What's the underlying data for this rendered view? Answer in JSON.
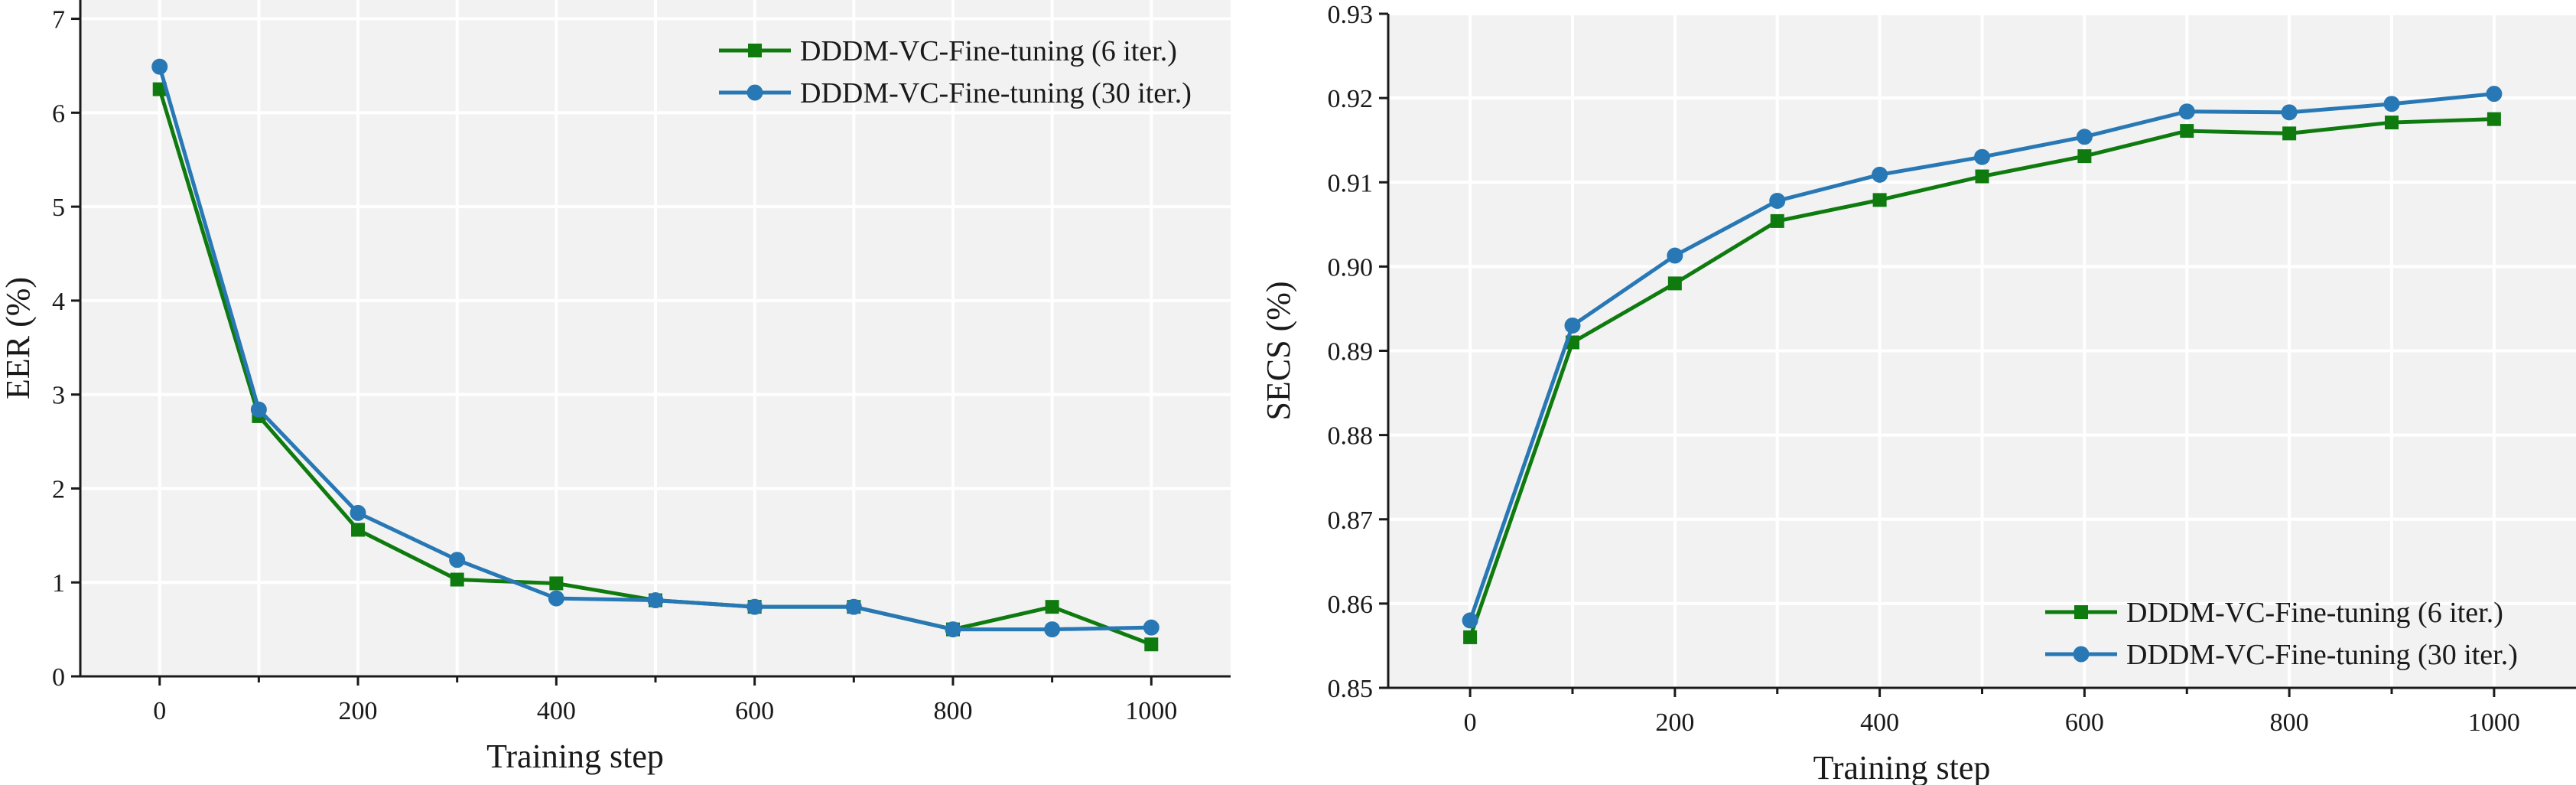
{
  "colors": {
    "series_6": "#0f7b0f",
    "series_30": "#2878b5",
    "panel_bg": "#f2f2f2",
    "grid": "#ffffff",
    "axis": "#1a1a1a"
  },
  "chart_data": [
    {
      "type": "line",
      "id": "eer",
      "title": "",
      "xlabel": "Training step",
      "ylabel": "EER (%)",
      "x": [
        0,
        100,
        200,
        300,
        400,
        500,
        600,
        700,
        800,
        900,
        1000
      ],
      "xlim": [
        -80,
        1080
      ],
      "ylim": [
        0,
        7.2
      ],
      "xticks": [
        0,
        200,
        400,
        600,
        800,
        1000
      ],
      "yticks": [
        0,
        1,
        2,
        3,
        4,
        5,
        6,
        7
      ],
      "xtick_labels": [
        "0",
        "200",
        "400",
        "600",
        "800",
        "1000"
      ],
      "ytick_labels": [
        "0",
        "1",
        "2",
        "3",
        "4",
        "5",
        "6",
        "7"
      ],
      "grid": true,
      "legend_position": "top-right",
      "series": [
        {
          "name": "DDDM-VC-Fine-tuning (6 iter.)",
          "marker": "square",
          "color_key": "series_6",
          "values": [
            6.25,
            2.77,
            1.56,
            1.03,
            0.99,
            0.81,
            0.74,
            0.74,
            0.5,
            0.74,
            0.34
          ]
        },
        {
          "name": "DDDM-VC-Fine-tuning (30 iter.)",
          "marker": "circle",
          "color_key": "series_30",
          "values": [
            6.49,
            2.84,
            1.74,
            1.24,
            0.83,
            0.81,
            0.74,
            0.74,
            0.5,
            0.5,
            0.52
          ]
        }
      ]
    },
    {
      "type": "line",
      "id": "secs",
      "title": "",
      "xlabel": "Training step",
      "ylabel": "SECS (%)",
      "x": [
        0,
        100,
        200,
        300,
        400,
        500,
        600,
        700,
        800,
        900,
        1000
      ],
      "xlim": [
        -80,
        1080
      ],
      "ylim": [
        0.85,
        0.93
      ],
      "xticks": [
        0,
        200,
        400,
        600,
        800,
        1000
      ],
      "yticks": [
        0.85,
        0.86,
        0.87,
        0.88,
        0.89,
        0.9,
        0.91,
        0.92,
        0.93
      ],
      "xtick_labels": [
        "0",
        "200",
        "400",
        "600",
        "800",
        "1000"
      ],
      "ytick_labels": [
        "0.85",
        "0.86",
        "0.87",
        "0.88",
        "0.89",
        "0.90",
        "0.91",
        "0.92",
        "0.93"
      ],
      "grid": true,
      "legend_position": "bottom-right",
      "series": [
        {
          "name": "DDDM-VC-Fine-tuning (6 iter.)",
          "marker": "square",
          "color_key": "series_6",
          "values": [
            0.856,
            0.891,
            0.898,
            0.9054,
            0.9079,
            0.9107,
            0.9131,
            0.9161,
            0.9158,
            0.9171,
            0.9175
          ]
        },
        {
          "name": "DDDM-VC-Fine-tuning (30 iter.)",
          "marker": "circle",
          "color_key": "series_30",
          "values": [
            0.858,
            0.893,
            0.9013,
            0.9078,
            0.9109,
            0.913,
            0.9154,
            0.9184,
            0.9183,
            0.9193,
            0.9205
          ]
        }
      ]
    }
  ]
}
